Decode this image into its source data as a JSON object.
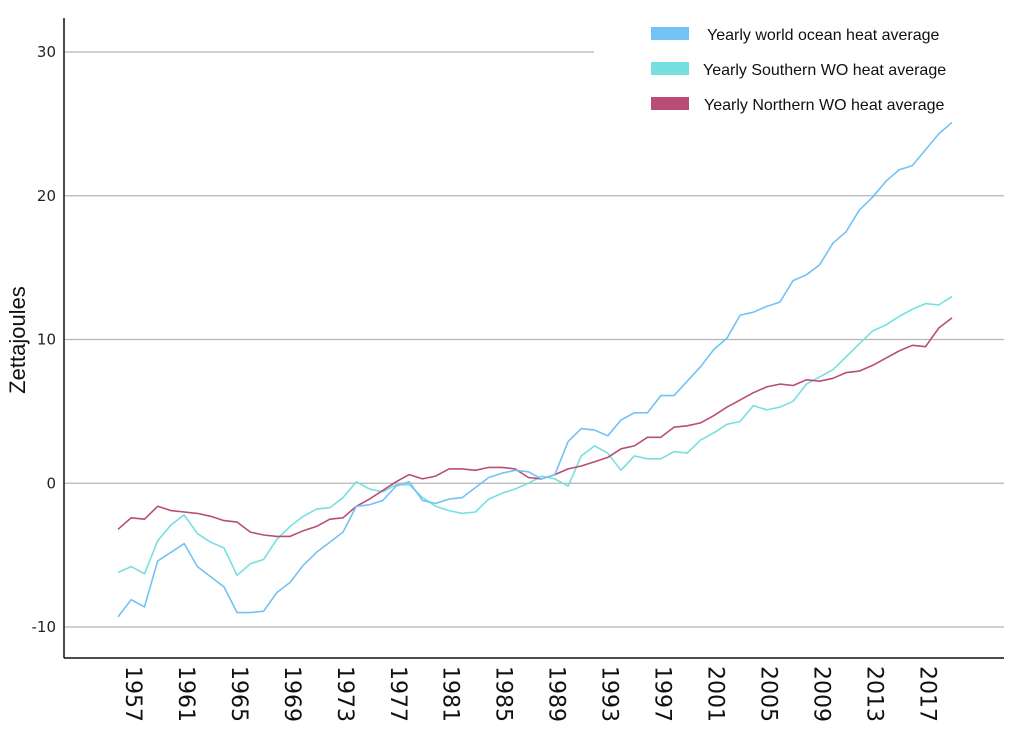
{
  "chart_data": {
    "type": "line",
    "title": "",
    "xlabel": "",
    "ylabel": "Zettajoules",
    "ylim": [
      -10,
      30
    ],
    "yticks": [
      "-10",
      "0",
      "10",
      "20",
      "30"
    ],
    "xticks": [
      "1957",
      "1961",
      "1965",
      "1969",
      "1973",
      "1977",
      "1981",
      "1985",
      "1989",
      "1993",
      "1997",
      "2001",
      "2005",
      "2009",
      "2013",
      "2017"
    ],
    "grid": "horizontal",
    "legend_position": "top-right",
    "x": [
      1957,
      1958,
      1959,
      1960,
      1961,
      1962,
      1963,
      1964,
      1965,
      1966,
      1967,
      1968,
      1969,
      1970,
      1971,
      1972,
      1973,
      1974,
      1975,
      1976,
      1977,
      1978,
      1979,
      1980,
      1981,
      1982,
      1983,
      1984,
      1985,
      1986,
      1987,
      1988,
      1989,
      1990,
      1991,
      1992,
      1993,
      1994,
      1995,
      1996,
      1997,
      1998,
      1999,
      2000,
      2001,
      2002,
      2003,
      2004,
      2005,
      2006,
      2007,
      2008,
      2009,
      2010,
      2011,
      2012,
      2013,
      2014,
      2015,
      2016,
      2017,
      2018,
      2019,
      2020
    ],
    "series": [
      {
        "name": "Yearly world ocean heat average",
        "color": "#73c2f5",
        "values": [
          -9.3,
          -8.1,
          -8.6,
          -5.4,
          -4.8,
          -4.2,
          -5.8,
          -6.5,
          -7.2,
          -9.0,
          -9.0,
          -8.9,
          -7.6,
          -6.9,
          -5.7,
          -4.8,
          -4.1,
          -3.4,
          -1.6,
          -1.5,
          -1.2,
          -0.2,
          0.1,
          -1.2,
          -1.4,
          -1.1,
          -1.0,
          -0.3,
          0.4,
          0.7,
          0.9,
          0.8,
          0.3,
          0.6,
          2.9,
          3.8,
          3.7,
          3.3,
          4.4,
          4.9,
          4.9,
          6.1,
          6.1,
          7.1,
          8.1,
          9.3,
          10.1,
          11.7,
          11.9,
          12.3,
          12.6,
          14.1,
          14.5,
          15.2,
          16.7,
          17.5,
          19.0,
          19.9,
          21.0,
          21.8,
          22.1,
          23.2,
          24.3,
          25.1
        ]
      },
      {
        "name": "Yearly Southern WO heat average",
        "color": "#76e0e0",
        "values": [
          -6.2,
          -5.8,
          -6.3,
          -4.0,
          -2.9,
          -2.2,
          -3.5,
          -4.1,
          -4.5,
          -6.4,
          -5.6,
          -5.3,
          -3.9,
          -3.0,
          -2.3,
          -1.8,
          -1.7,
          -1.0,
          0.1,
          -0.4,
          -0.6,
          -0.1,
          -0.1,
          -1.0,
          -1.6,
          -1.9,
          -2.1,
          -2.0,
          -1.1,
          -0.7,
          -0.4,
          0.0,
          0.5,
          0.3,
          -0.2,
          1.9,
          2.6,
          2.1,
          0.9,
          1.9,
          1.7,
          1.7,
          2.2,
          2.1,
          3.0,
          3.5,
          4.1,
          4.3,
          5.4,
          5.1,
          5.3,
          5.7,
          6.9,
          7.4,
          7.9,
          8.8,
          9.7,
          10.6,
          11.0,
          11.6,
          12.1,
          12.5,
          12.4,
          13.0
        ]
      },
      {
        "name": "Yearly Northern WO heat average",
        "color": "#b94d78",
        "values": [
          -3.2,
          -2.4,
          -2.5,
          -1.6,
          -1.9,
          -2.0,
          -2.1,
          -2.3,
          -2.6,
          -2.7,
          -3.4,
          -3.6,
          -3.7,
          -3.7,
          -3.3,
          -3.0,
          -2.5,
          -2.4,
          -1.6,
          -1.1,
          -0.5,
          0.1,
          0.6,
          0.3,
          0.5,
          1.0,
          1.0,
          0.9,
          1.1,
          1.1,
          1.0,
          0.4,
          0.3,
          0.6,
          1.0,
          1.2,
          1.5,
          1.8,
          2.4,
          2.6,
          3.2,
          3.2,
          3.9,
          4.0,
          4.2,
          4.7,
          5.3,
          5.8,
          6.3,
          6.7,
          6.9,
          6.8,
          7.2,
          7.1,
          7.3,
          7.7,
          7.8,
          8.2,
          8.7,
          9.2,
          9.6,
          9.5,
          10.8,
          11.5
        ]
      }
    ]
  }
}
